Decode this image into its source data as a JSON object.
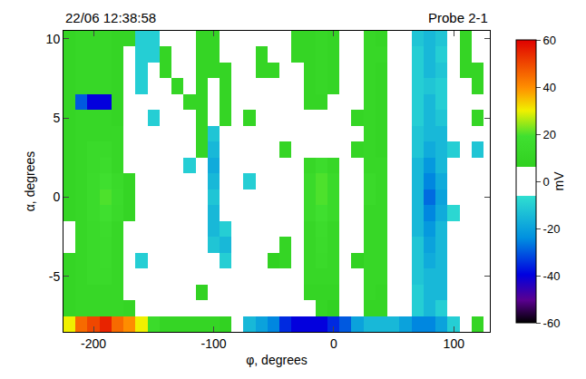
{
  "chart_data": {
    "type": "heatmap",
    "title": "22/06 12:38:58",
    "subtitle": "Probe 2-1",
    "x_label": "φ, degrees",
    "y_label": "α, degrees",
    "x": [
      -220,
      -210,
      -200,
      -190,
      -180,
      -170,
      -160,
      -150,
      -140,
      -130,
      -120,
      -110,
      -100,
      -90,
      -80,
      -70,
      -60,
      -50,
      -40,
      -30,
      -20,
      -10,
      0,
      10,
      20,
      30,
      40,
      50,
      60,
      70,
      80,
      90,
      100,
      110,
      120
    ],
    "y": [
      -8,
      -7,
      -6,
      -5,
      -4,
      -3,
      -2,
      -1,
      0,
      1,
      2,
      3,
      4,
      5,
      6,
      7,
      8,
      9,
      10
    ],
    "z": [
      [
        30,
        45,
        50,
        55,
        45,
        40,
        30,
        15,
        10,
        10,
        10,
        10,
        10,
        8,
        0,
        -15,
        -20,
        -25,
        -35,
        -40,
        -40,
        -40,
        -35,
        -30,
        -20,
        -15,
        -15,
        -15,
        -20,
        -25,
        -25,
        -20,
        -10,
        0,
        10
      ],
      [
        10,
        12,
        12,
        12,
        12,
        10,
        0,
        0,
        0,
        0,
        0,
        0,
        0,
        0,
        0,
        0,
        0,
        0,
        0,
        0,
        0,
        10,
        8,
        0,
        0,
        10,
        10,
        0,
        0,
        -10,
        -15,
        -10,
        0,
        0,
        0
      ],
      [
        10,
        12,
        12,
        12,
        12,
        0,
        0,
        0,
        0,
        0,
        0,
        8,
        0,
        0,
        0,
        0,
        0,
        0,
        0,
        0,
        10,
        10,
        10,
        0,
        0,
        12,
        10,
        0,
        0,
        -10,
        -15,
        -15,
        0,
        0,
        0
      ],
      [
        10,
        12,
        14,
        14,
        12,
        0,
        0,
        0,
        0,
        0,
        0,
        0,
        0,
        0,
        0,
        0,
        0,
        0,
        0,
        0,
        12,
        12,
        12,
        0,
        0,
        12,
        12,
        0,
        0,
        -12,
        -15,
        -15,
        0,
        0,
        0
      ],
      [
        10,
        12,
        14,
        15,
        12,
        0,
        -10,
        0,
        0,
        0,
        0,
        0,
        0,
        -10,
        0,
        0,
        0,
        8,
        10,
        0,
        12,
        14,
        12,
        0,
        8,
        12,
        12,
        0,
        0,
        -12,
        -18,
        -15,
        0,
        0,
        0
      ],
      [
        0,
        12,
        14,
        15,
        12,
        0,
        0,
        0,
        0,
        0,
        0,
        0,
        -12,
        -15,
        0,
        0,
        0,
        0,
        10,
        0,
        12,
        15,
        12,
        0,
        0,
        12,
        12,
        0,
        0,
        -12,
        -20,
        -15,
        0,
        0,
        0
      ],
      [
        0,
        12,
        14,
        16,
        12,
        0,
        0,
        0,
        0,
        0,
        0,
        0,
        -15,
        -10,
        0,
        0,
        0,
        0,
        0,
        0,
        12,
        16,
        12,
        0,
        0,
        12,
        12,
        0,
        0,
        -15,
        -22,
        -15,
        0,
        0,
        0
      ],
      [
        10,
        12,
        15,
        18,
        14,
        10,
        0,
        0,
        0,
        0,
        0,
        0,
        -15,
        0,
        0,
        0,
        0,
        0,
        0,
        0,
        14,
        18,
        14,
        0,
        0,
        12,
        12,
        0,
        0,
        -15,
        -25,
        -18,
        -8,
        0,
        0
      ],
      [
        10,
        12,
        15,
        20,
        15,
        10,
        0,
        0,
        0,
        0,
        0,
        0,
        -12,
        0,
        0,
        0,
        0,
        0,
        0,
        0,
        14,
        20,
        14,
        0,
        0,
        14,
        12,
        0,
        0,
        -15,
        -28,
        -20,
        0,
        0,
        0
      ],
      [
        10,
        12,
        15,
        18,
        14,
        10,
        0,
        0,
        0,
        0,
        0,
        0,
        -15,
        0,
        0,
        -10,
        0,
        0,
        0,
        0,
        14,
        20,
        14,
        0,
        0,
        14,
        12,
        0,
        0,
        -15,
        -25,
        -18,
        0,
        0,
        0
      ],
      [
        10,
        12,
        14,
        16,
        12,
        0,
        0,
        0,
        0,
        0,
        -10,
        0,
        -18,
        0,
        0,
        0,
        0,
        0,
        0,
        0,
        12,
        16,
        12,
        0,
        0,
        12,
        12,
        0,
        0,
        -15,
        -22,
        -15,
        0,
        0,
        0
      ],
      [
        10,
        12,
        14,
        14,
        12,
        0,
        0,
        0,
        0,
        0,
        0,
        10,
        -15,
        0,
        0,
        0,
        0,
        0,
        10,
        0,
        0,
        0,
        0,
        0,
        10,
        12,
        10,
        0,
        0,
        -12,
        -18,
        -15,
        -10,
        0,
        -12
      ],
      [
        10,
        12,
        12,
        12,
        12,
        0,
        0,
        0,
        0,
        0,
        0,
        10,
        -12,
        0,
        0,
        0,
        0,
        0,
        0,
        0,
        0,
        0,
        0,
        0,
        0,
        12,
        10,
        0,
        0,
        -12,
        -15,
        -15,
        0,
        0,
        0
      ],
      [
        10,
        12,
        12,
        12,
        10,
        0,
        0,
        -10,
        0,
        0,
        0,
        10,
        0,
        10,
        0,
        10,
        0,
        0,
        0,
        0,
        0,
        0,
        0,
        0,
        10,
        12,
        10,
        0,
        0,
        -10,
        -15,
        -12,
        0,
        0,
        10
      ],
      [
        10,
        -30,
        -40,
        -40,
        10,
        0,
        0,
        0,
        0,
        0,
        10,
        10,
        0,
        10,
        0,
        0,
        0,
        0,
        0,
        0,
        10,
        10,
        0,
        0,
        0,
        12,
        10,
        0,
        0,
        -10,
        -15,
        -10,
        0,
        0,
        0
      ],
      [
        10,
        12,
        12,
        12,
        10,
        0,
        -10,
        0,
        0,
        10,
        0,
        10,
        0,
        10,
        0,
        0,
        0,
        0,
        0,
        0,
        10,
        12,
        10,
        0,
        0,
        12,
        10,
        0,
        0,
        -10,
        -12,
        -10,
        0,
        0,
        10
      ],
      [
        10,
        12,
        12,
        12,
        10,
        0,
        -10,
        0,
        10,
        0,
        0,
        10,
        10,
        10,
        0,
        0,
        10,
        10,
        0,
        0,
        10,
        12,
        10,
        0,
        0,
        12,
        10,
        0,
        0,
        -10,
        -15,
        -12,
        0,
        10,
        10
      ],
      [
        10,
        12,
        12,
        12,
        10,
        0,
        -10,
        -10,
        10,
        0,
        0,
        10,
        10,
        0,
        0,
        0,
        10,
        0,
        0,
        10,
        10,
        12,
        10,
        0,
        0,
        12,
        12,
        0,
        0,
        -10,
        -15,
        -10,
        0,
        10,
        0
      ],
      [
        10,
        12,
        12,
        12,
        10,
        10,
        -10,
        -10,
        0,
        0,
        0,
        10,
        10,
        0,
        0,
        0,
        0,
        0,
        0,
        10,
        10,
        12,
        10,
        0,
        0,
        12,
        10,
        0,
        0,
        -12,
        -15,
        -12,
        0,
        10,
        0
      ]
    ],
    "xlim": [
      -225,
      130
    ],
    "ylim": [
      -8.5,
      10.5
    ],
    "xticks": [
      -200,
      -100,
      0,
      100
    ],
    "yticks": [
      -5,
      0,
      5,
      10
    ],
    "colorbar": {
      "title": "mV",
      "range": [
        -60,
        60
      ],
      "ticks": [
        -60,
        -40,
        -20,
        0,
        20,
        40,
        60
      ]
    }
  }
}
